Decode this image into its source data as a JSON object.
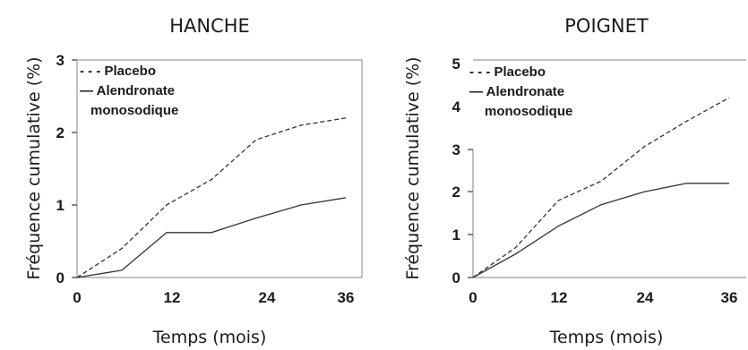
{
  "chart_data": [
    {
      "type": "line",
      "title": "HANCHE",
      "xlabel": "Temps (mois)",
      "ylabel": "Fréquence cumulative (%)",
      "xlim": [
        0,
        36
      ],
      "ylim": [
        0,
        3
      ],
      "x_ticks": [
        "0",
        "12",
        "24",
        "36"
      ],
      "y_ticks": [
        "0",
        "1",
        "2",
        "3"
      ],
      "grid": false,
      "legend_position": "top-left",
      "legend": {
        "placebo_label": "- - - Placebo",
        "alendronate_label": "— Alendronate",
        "alendronate_label_line2": "monosodique"
      },
      "series": [
        {
          "name": "Placebo",
          "style": "dashed",
          "x": [
            0,
            6,
            12,
            18,
            24,
            30,
            36
          ],
          "values": [
            0,
            0.4,
            1.0,
            1.35,
            1.9,
            2.1,
            2.2
          ]
        },
        {
          "name": "Alendronate monosodique",
          "style": "solid",
          "x": [
            0,
            6,
            12,
            18,
            24,
            30,
            36
          ],
          "values": [
            0,
            0.1,
            0.62,
            0.62,
            0.82,
            1.0,
            1.1
          ]
        }
      ]
    },
    {
      "type": "line",
      "title": "POIGNET",
      "xlabel": "Temps (mois)",
      "ylabel": "Fréquence cumulative (%)",
      "xlim": [
        0,
        36
      ],
      "ylim": [
        0,
        5
      ],
      "x_ticks": [
        "0",
        "12",
        "24",
        "36"
      ],
      "y_ticks": [
        "0",
        "1",
        "2",
        "3",
        "4",
        "5"
      ],
      "grid": false,
      "legend_position": "top-left",
      "legend": {
        "placebo_label": "- - - Placebo",
        "alendronate_label": "— Alendronate",
        "alendronate_label_line2": "monosodique"
      },
      "series": [
        {
          "name": "Placebo",
          "style": "dashed",
          "x": [
            0,
            6,
            12,
            18,
            24,
            30,
            36
          ],
          "values": [
            0,
            0.7,
            1.8,
            2.25,
            3.05,
            3.65,
            4.2
          ]
        },
        {
          "name": "Alendronate monosodique",
          "style": "solid",
          "x": [
            0,
            6,
            12,
            18,
            24,
            30,
            36
          ],
          "values": [
            0,
            0.55,
            1.2,
            1.7,
            2.0,
            2.2,
            2.2
          ]
        }
      ]
    }
  ]
}
